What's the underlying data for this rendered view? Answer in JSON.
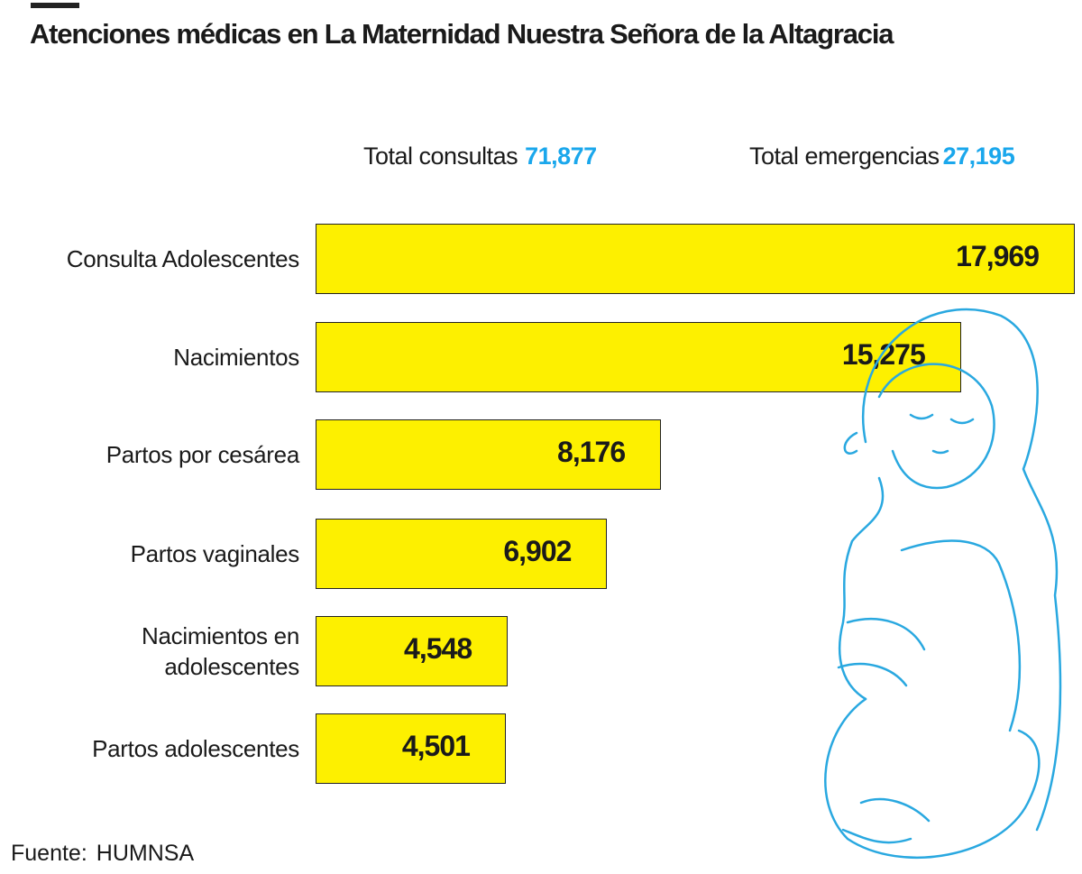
{
  "title": "Atenciones médicas en La Maternidad Nuestra Señora de la Altagracia",
  "totals": {
    "consultas_label": "Total consultas",
    "consultas_value": "71,877",
    "emergencias_label": "Total emergencias",
    "emergencias_value": "27,195"
  },
  "source": {
    "label": "Fuente:",
    "value": "HUMNSA"
  },
  "colors": {
    "bar": "#fdf000",
    "accent": "#1aa7ec",
    "illustration": "#29a8e0"
  },
  "illustration": "pregnant-woman-outline",
  "chart_data": {
    "type": "bar",
    "orientation": "horizontal",
    "categories": [
      "Consulta Adolescentes",
      "Nacimientos",
      "Partos por cesárea",
      "Partos vaginales",
      "Nacimientos en adolescentes",
      "Partos adolescentes"
    ],
    "values": [
      17969,
      15275,
      8176,
      6902,
      4548,
      4501
    ],
    "value_labels": [
      "17,969",
      "15,275",
      "8,176",
      "6,902",
      "4,548",
      "4,501"
    ],
    "grid": false,
    "axes_visible": false
  }
}
